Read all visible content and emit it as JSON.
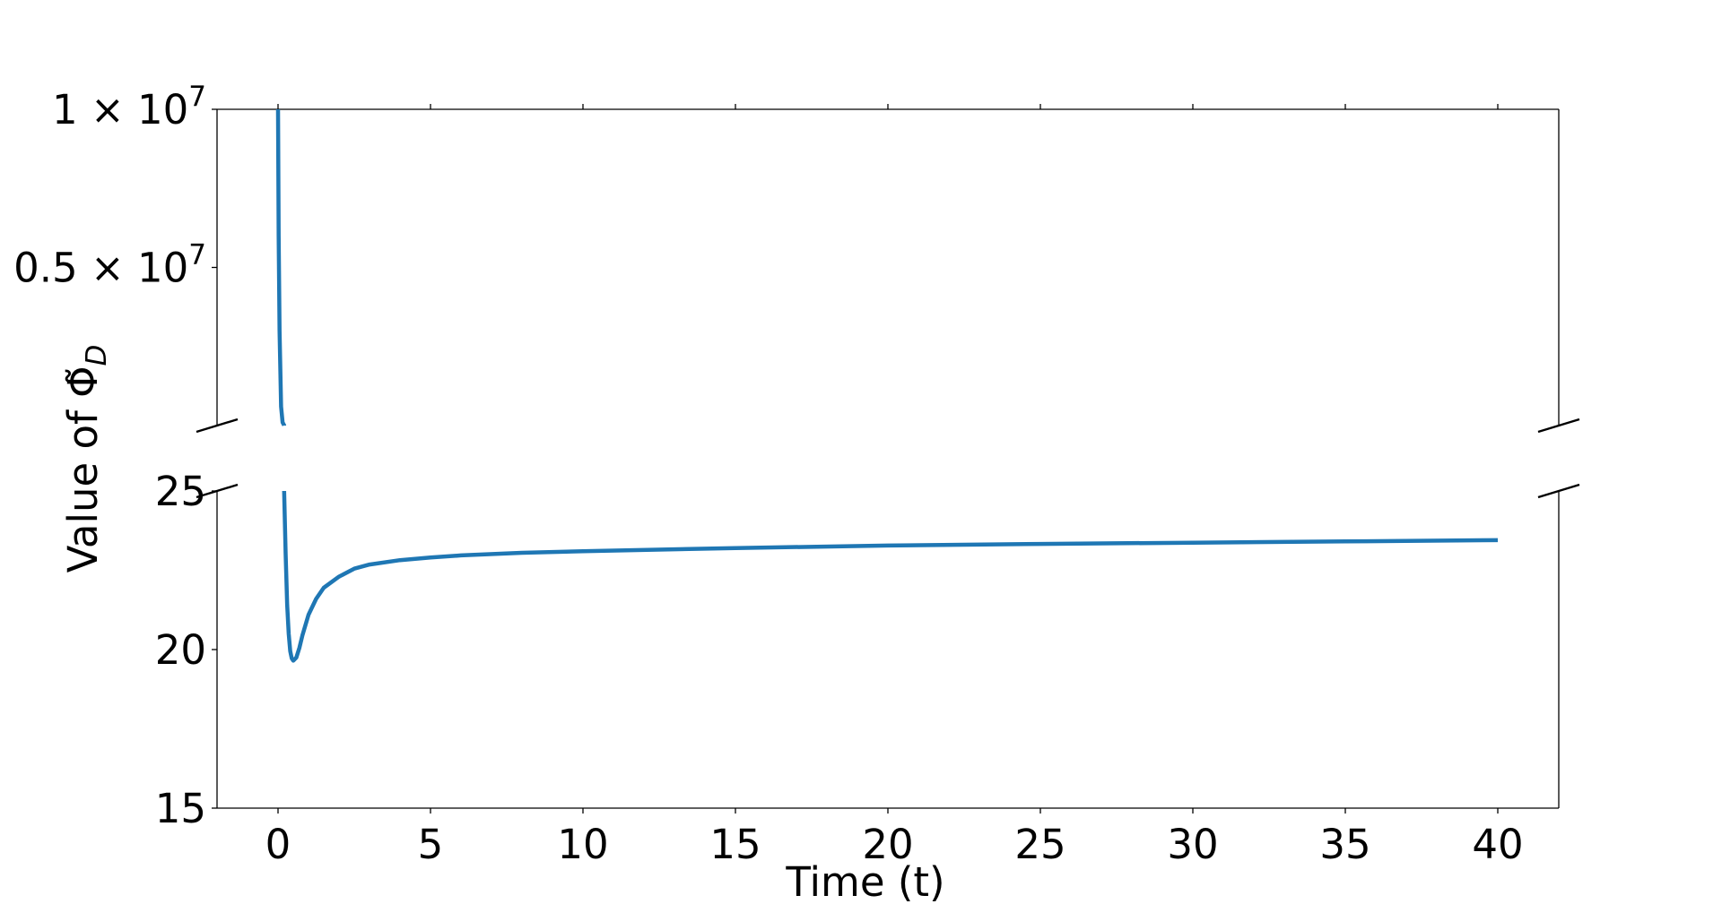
{
  "chart_data": {
    "type": "line",
    "broken_y_axis": true,
    "xlabel": "Time (t)",
    "ylabel": "Value of Φ̃_D",
    "xlim": [
      -2,
      42
    ],
    "xticks": [
      "0",
      "5",
      "10",
      "15",
      "20",
      "25",
      "30",
      "35",
      "40"
    ],
    "upper_panel": {
      "ylim": [
        0,
        10000000
      ],
      "yticks": [
        {
          "value": 10000000,
          "label": "1 × 10^7"
        },
        {
          "value": 5000000,
          "label": "0.5 × 10^7"
        }
      ]
    },
    "lower_panel": {
      "ylim": [
        15,
        25
      ],
      "yticks": [
        "15",
        "20",
        "25"
      ]
    },
    "line_color": "#1f77b4",
    "series": [
      {
        "x": [
          0.0,
          0.02,
          0.05,
          0.1,
          0.15,
          0.2,
          0.25,
          0.3,
          0.35,
          0.4,
          0.45,
          0.5,
          0.6,
          0.7,
          0.8,
          1.0,
          1.25,
          1.5,
          2.0,
          2.5,
          3.0,
          4.0,
          5.0,
          6.0,
          8.0,
          10.0,
          15.0,
          20.0,
          25.0,
          30.0,
          35.0,
          40.0
        ],
        "y": [
          10000000,
          6000000,
          3000000,
          600000,
          100000,
          8000,
          23.0,
          21.4,
          20.5,
          19.95,
          19.72,
          19.65,
          19.75,
          20.05,
          20.45,
          21.1,
          21.6,
          21.95,
          22.3,
          22.55,
          22.68,
          22.82,
          22.9,
          22.97,
          23.05,
          23.1,
          23.2,
          23.28,
          23.33,
          23.37,
          23.41,
          23.45
        ]
      }
    ]
  }
}
